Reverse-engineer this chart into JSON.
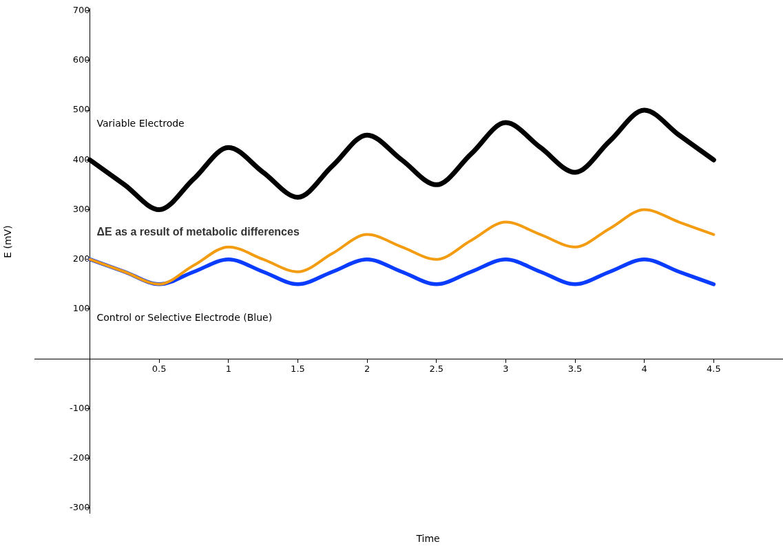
{
  "chart_data": {
    "type": "line",
    "xlabel": "Time",
    "ylabel": "E (mV)",
    "x": [
      0,
      0.25,
      0.5,
      0.75,
      1,
      1.25,
      1.5,
      1.75,
      2,
      2.25,
      2.5,
      2.75,
      3,
      3.25,
      3.5,
      3.75,
      4,
      4.25,
      4.5
    ],
    "series": [
      {
        "color": "#000000",
        "values": [
          400,
          350,
          300,
          362,
          425,
          375,
          325,
          388,
          450,
          400,
          350,
          412,
          475,
          425,
          375,
          438,
          500,
          450,
          400
        ]
      },
      {
        "color": "#0a3cff",
        "values": [
          200,
          175,
          150,
          175,
          200,
          175,
          150,
          175,
          200,
          175,
          150,
          175,
          200,
          175,
          150,
          175,
          200,
          175,
          150
        ]
      },
      {
        "color": "#f39c12",
        "values": [
          200,
          175,
          150,
          188,
          225,
          200,
          175,
          212,
          250,
          225,
          200,
          238,
          275,
          250,
          225,
          262,
          300,
          275,
          250
        ]
      }
    ],
    "xlim": [
      -0.4,
      5
    ],
    "ylim": [
      -310,
      705
    ],
    "xticks": [
      {
        "value": 0,
        "label": null
      },
      0.5,
      1,
      1.5,
      2,
      2.5,
      3,
      3.5,
      4,
      4.5
    ],
    "yticks": [
      -300,
      -200,
      -100,
      {
        "value": 0,
        "label": null
      },
      100,
      200,
      300,
      400,
      500,
      600,
      700
    ],
    "annotations": [
      "Variable Electrode",
      "ΔE as a result of metabolic differences",
      "Control or Selective Electrode (Blue)"
    ],
    "grid": false,
    "legend": false,
    "marker": "none",
    "line_style": "solid"
  }
}
